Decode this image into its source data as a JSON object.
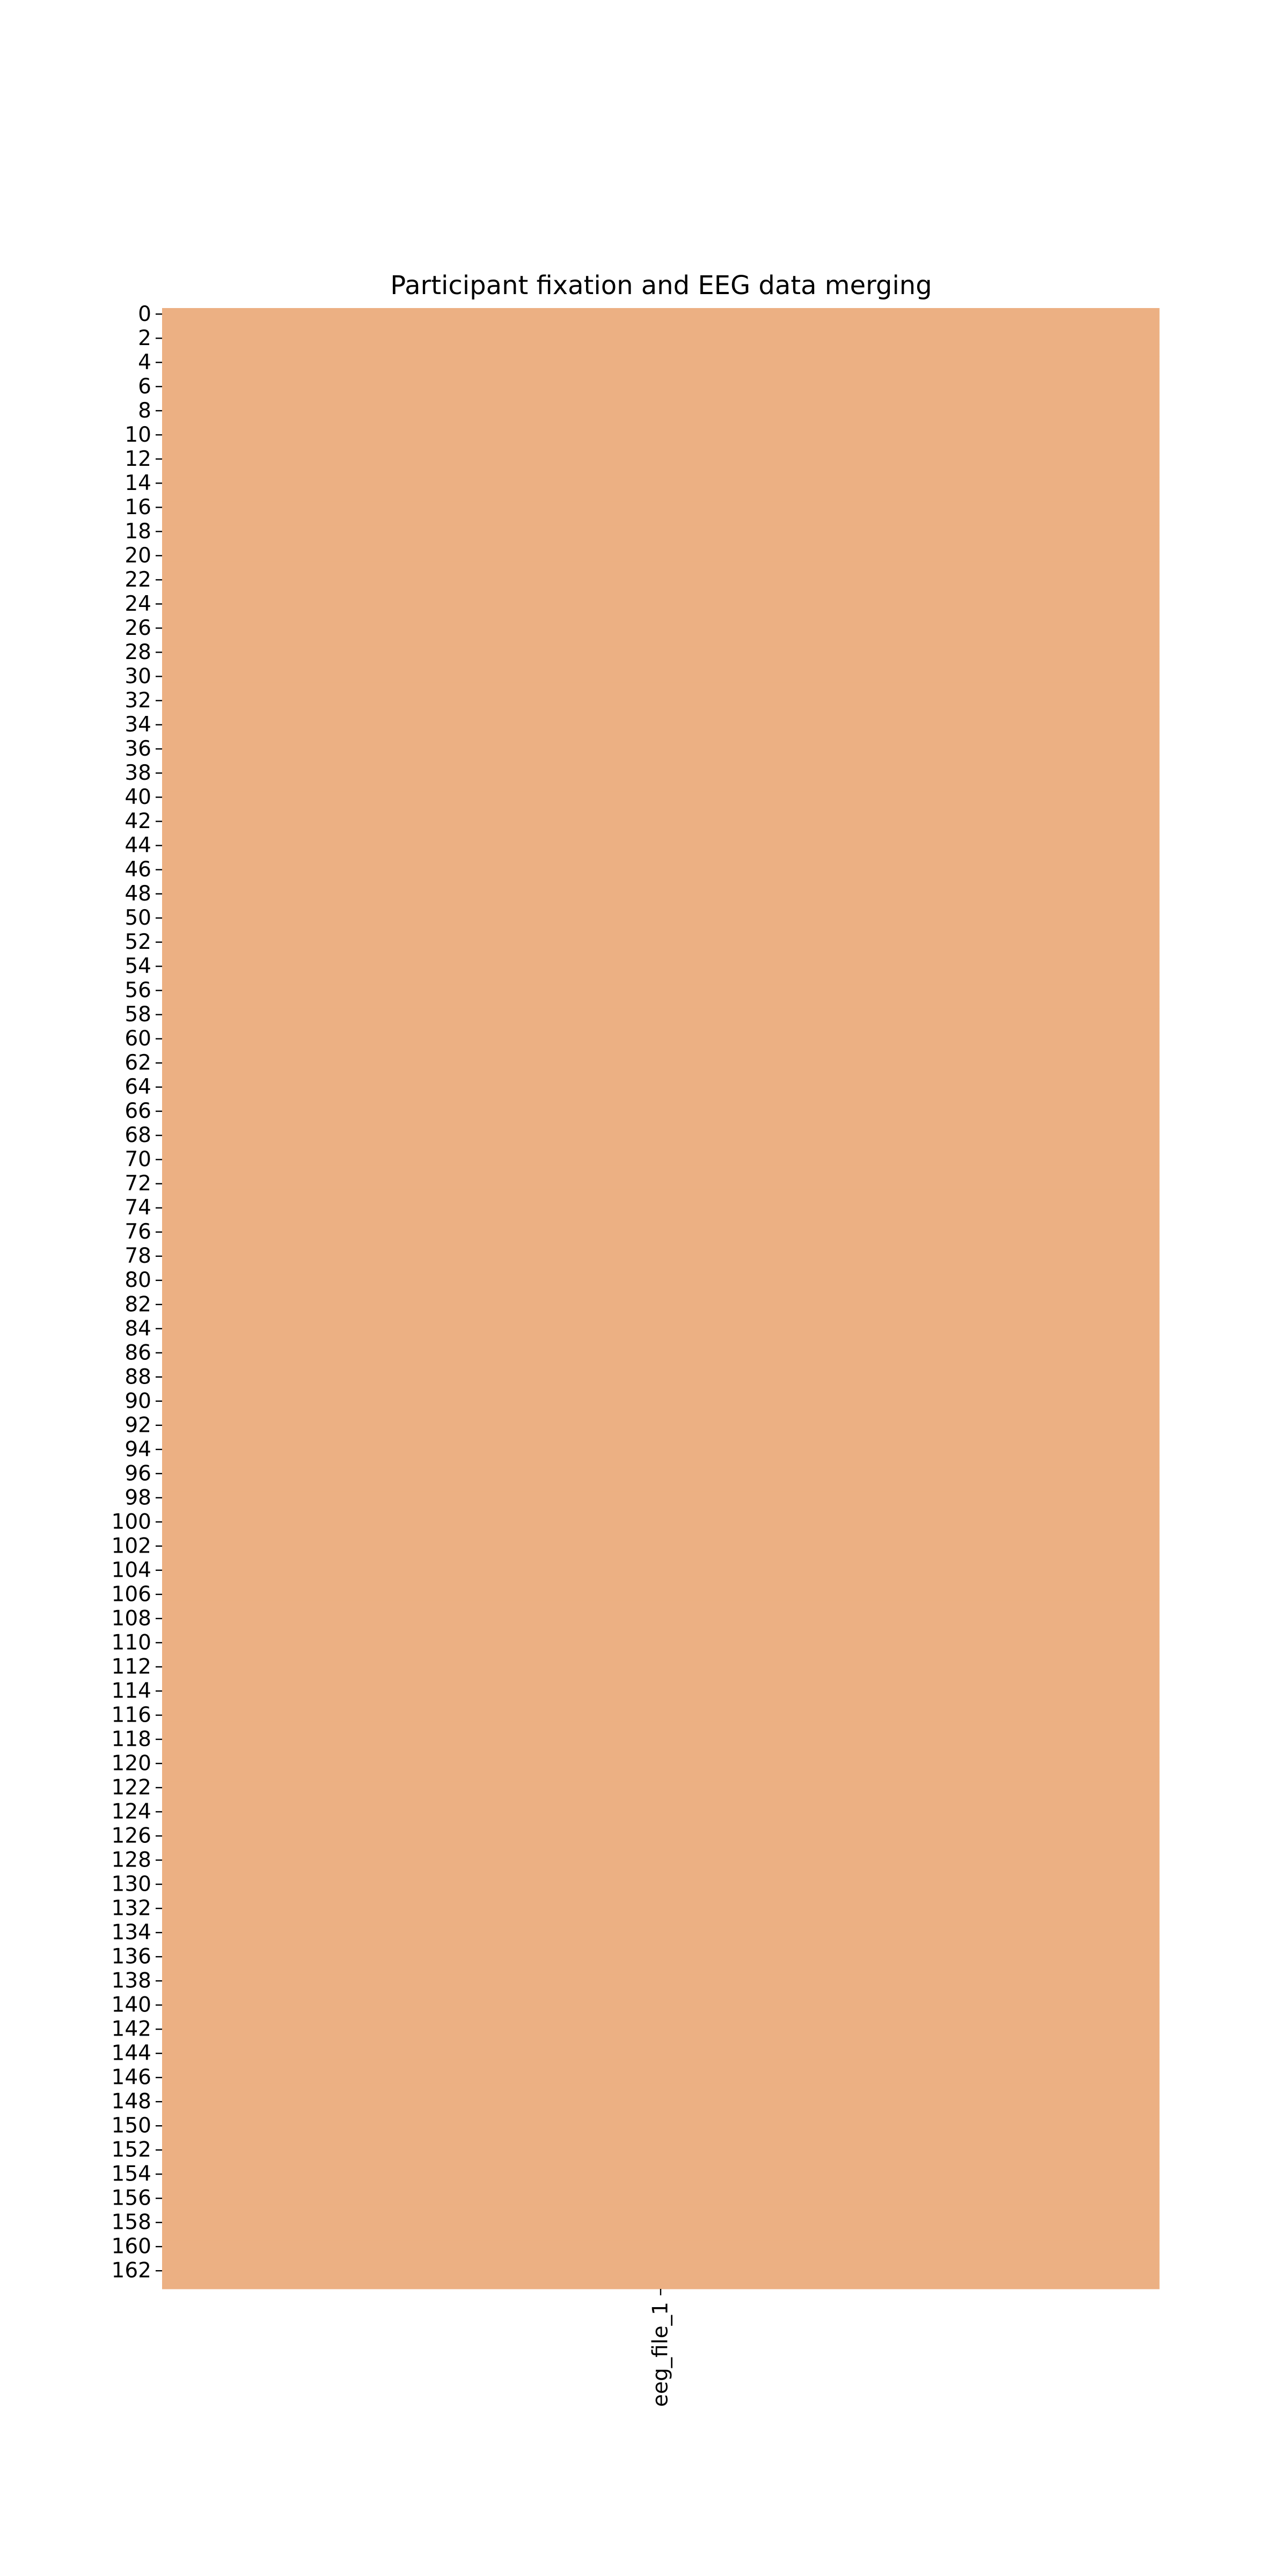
{
  "chart_data": {
    "type": "heatmap",
    "title": "Participant fixation and EEG data merging",
    "xlabel": "",
    "ylabel": "",
    "x_categories": [
      "eeg_file_1"
    ],
    "y_tick_labels": [
      "0",
      "2",
      "4",
      "6",
      "8",
      "10",
      "12",
      "14",
      "16",
      "18",
      "20",
      "22",
      "24",
      "26",
      "28",
      "30",
      "32",
      "34",
      "36",
      "38",
      "40",
      "42",
      "44",
      "46",
      "48",
      "50",
      "52",
      "54",
      "56",
      "58",
      "60",
      "62",
      "64",
      "66",
      "68",
      "70",
      "72",
      "74",
      "76",
      "78",
      "80",
      "82",
      "84",
      "86",
      "88",
      "90",
      "92",
      "94",
      "96",
      "98",
      "100",
      "102",
      "104",
      "106",
      "108",
      "110",
      "112",
      "114",
      "116",
      "118",
      "120",
      "122",
      "124",
      "126",
      "128",
      "130",
      "132",
      "134",
      "136",
      "138",
      "140",
      "142",
      "144",
      "146",
      "148",
      "150",
      "152",
      "154",
      "156",
      "158",
      "160",
      "162"
    ],
    "row_count": 164,
    "cell_color": "#ecb083",
    "colorbar": false,
    "grid": false
  }
}
